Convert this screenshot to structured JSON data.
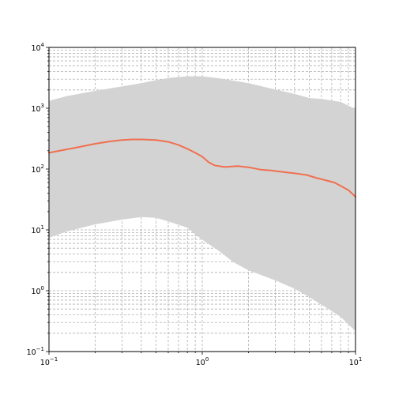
{
  "chart_data": {
    "type": "line",
    "title": "",
    "xlabel": "",
    "ylabel": "",
    "x_scale": "log",
    "y_scale": "log",
    "xlim": [
      0.1,
      10
    ],
    "ylim": [
      0.1,
      10000
    ],
    "grid": "both (major and minor), dashed",
    "legend": "none",
    "x_ticks": [
      {
        "value": 0.1,
        "base": "10",
        "exp": "−1"
      },
      {
        "value": 1,
        "base": "10",
        "exp": "0"
      },
      {
        "value": 10,
        "base": "10",
        "exp": "1"
      }
    ],
    "y_ticks": [
      {
        "value": 0.1,
        "base": "10",
        "exp": "−1"
      },
      {
        "value": 1,
        "base": "10",
        "exp": "0"
      },
      {
        "value": 10,
        "base": "10",
        "exp": "1"
      },
      {
        "value": 100,
        "base": "10",
        "exp": "2"
      },
      {
        "value": 1000,
        "base": "10",
        "exp": "3"
      },
      {
        "value": 10000,
        "base": "10",
        "exp": "4"
      }
    ],
    "envelope": {
      "color": "#d3d3d3",
      "upper": {
        "x": [
          0.1,
          0.13,
          0.2,
          0.3,
          0.4,
          0.5,
          0.6,
          0.8,
          1.0,
          1.3,
          1.6,
          2.0,
          3.0,
          4.0,
          5.0,
          6.0,
          8.0,
          10.0
        ],
        "y": [
          1300,
          1550,
          1900,
          2250,
          2550,
          2850,
          3100,
          3300,
          3300,
          3050,
          2800,
          2550,
          2000,
          1700,
          1450,
          1400,
          1250,
          950
        ]
      },
      "lower": {
        "x": [
          0.1,
          0.13,
          0.2,
          0.3,
          0.4,
          0.5,
          0.6,
          0.8,
          1.0,
          1.3,
          1.6,
          2.0,
          3.0,
          4.0,
          5.0,
          6.0,
          8.0,
          10.0
        ],
        "y": [
          7.5,
          9.5,
          12.5,
          15,
          16.5,
          16,
          14,
          11,
          7,
          4.5,
          3,
          2.2,
          1.5,
          1.1,
          0.8,
          0.6,
          0.38,
          0.22
        ]
      }
    },
    "series": [
      {
        "color": "#f07050",
        "x": [
          0.1,
          0.15,
          0.2,
          0.25,
          0.3,
          0.35,
          0.4,
          0.5,
          0.6,
          0.7,
          0.8,
          0.9,
          1.0,
          1.1,
          1.2,
          1.4,
          1.7,
          2.0,
          2.4,
          2.8,
          3.3,
          4.0,
          4.8,
          5.5,
          6.3,
          7.3,
          8.0,
          9.0,
          10.0
        ],
        "y": [
          185,
          225,
          260,
          285,
          300,
          307,
          307,
          300,
          280,
          250,
          215,
          185,
          160,
          130,
          115,
          108,
          112,
          107,
          98,
          95,
          90,
          85,
          80,
          72,
          66,
          60,
          53,
          45,
          35
        ]
      }
    ]
  }
}
